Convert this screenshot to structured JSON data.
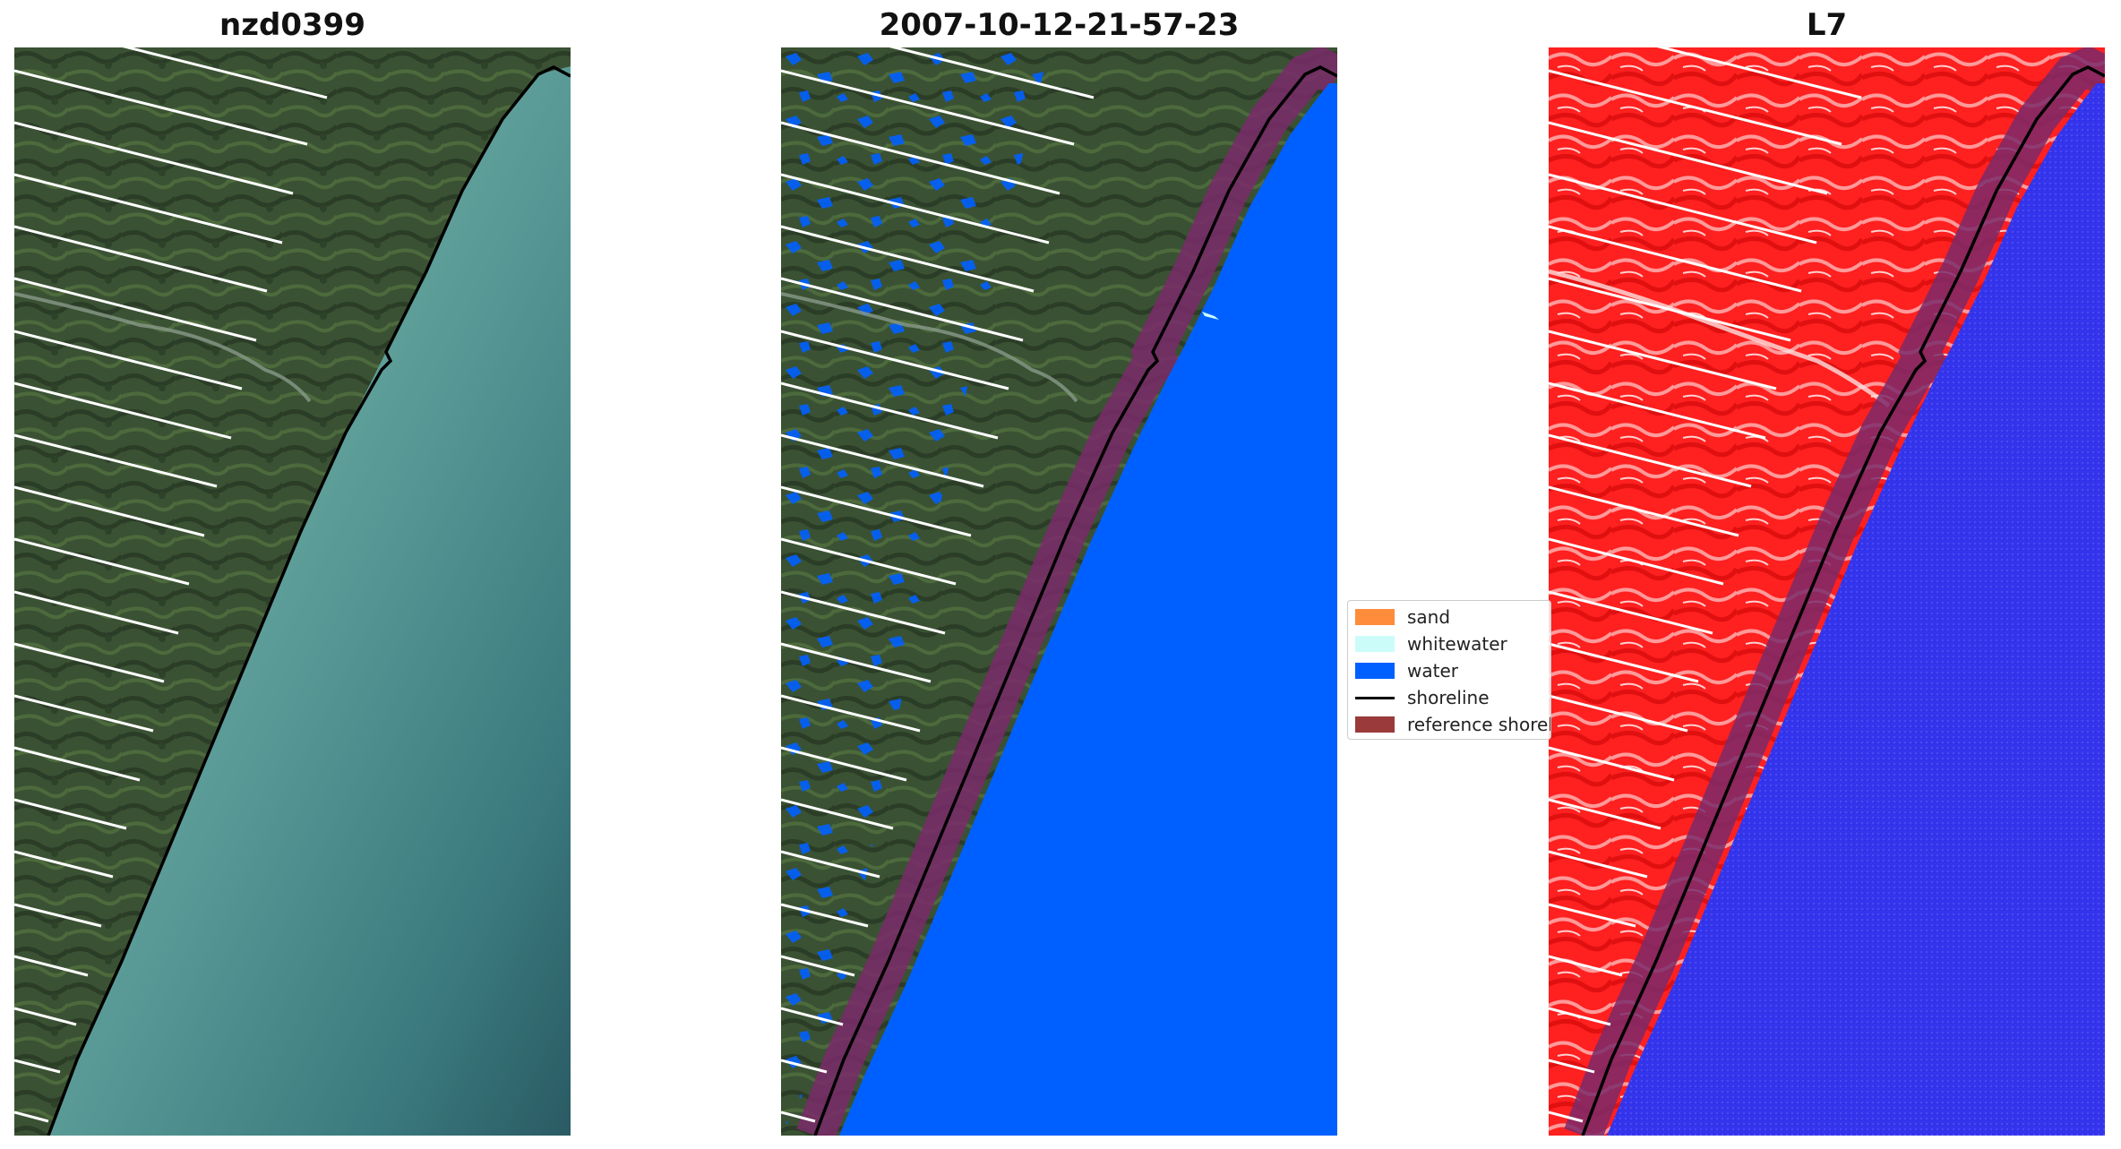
{
  "panels": [
    {
      "title": "nzd0399"
    },
    {
      "title": "2007-10-12-21-57-23"
    },
    {
      "title": "L7"
    }
  ],
  "legend": {
    "items": [
      {
        "label": "sand",
        "type": "patch",
        "color": "#ff8c3a"
      },
      {
        "label": "whitewater",
        "type": "patch",
        "color": "#ccfcfa"
      },
      {
        "label": "water",
        "type": "patch",
        "color": "#0060ff"
      },
      {
        "label": "shoreline",
        "type": "line",
        "color": "#000000"
      },
      {
        "label": "reference shoreline buffer",
        "type": "patch",
        "color": "#9a3a3a"
      }
    ]
  },
  "colors": {
    "land_rgb": "#3b5232",
    "sea_rgb": "#5fa39e",
    "water_class": "#0060ff",
    "buffer": "#7a2a6a",
    "ndwi_land": "#ff2a2a",
    "ndwi_water": "#3838ee",
    "stripe": "#ffffff",
    "shoreline": "#000000"
  }
}
